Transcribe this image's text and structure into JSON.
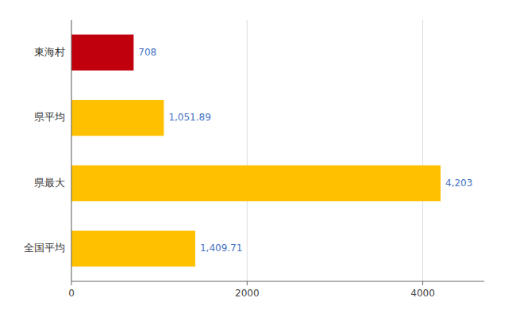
{
  "chart_data": {
    "type": "bar",
    "orientation": "horizontal",
    "categories": [
      "東海村",
      "県平均",
      "県最大",
      "全国平均"
    ],
    "values": [
      708,
      1051.89,
      4203,
      1409.71
    ],
    "value_labels": [
      "708",
      "1,051.89",
      "4,203",
      "1,409.71"
    ],
    "colors": [
      "#C0000C",
      "#FFC000",
      "#FFC000",
      "#FFC000"
    ],
    "xlim": [
      0,
      4700
    ],
    "xticks": [
      0,
      2000,
      4000
    ],
    "grid": true,
    "data_labels": true
  }
}
